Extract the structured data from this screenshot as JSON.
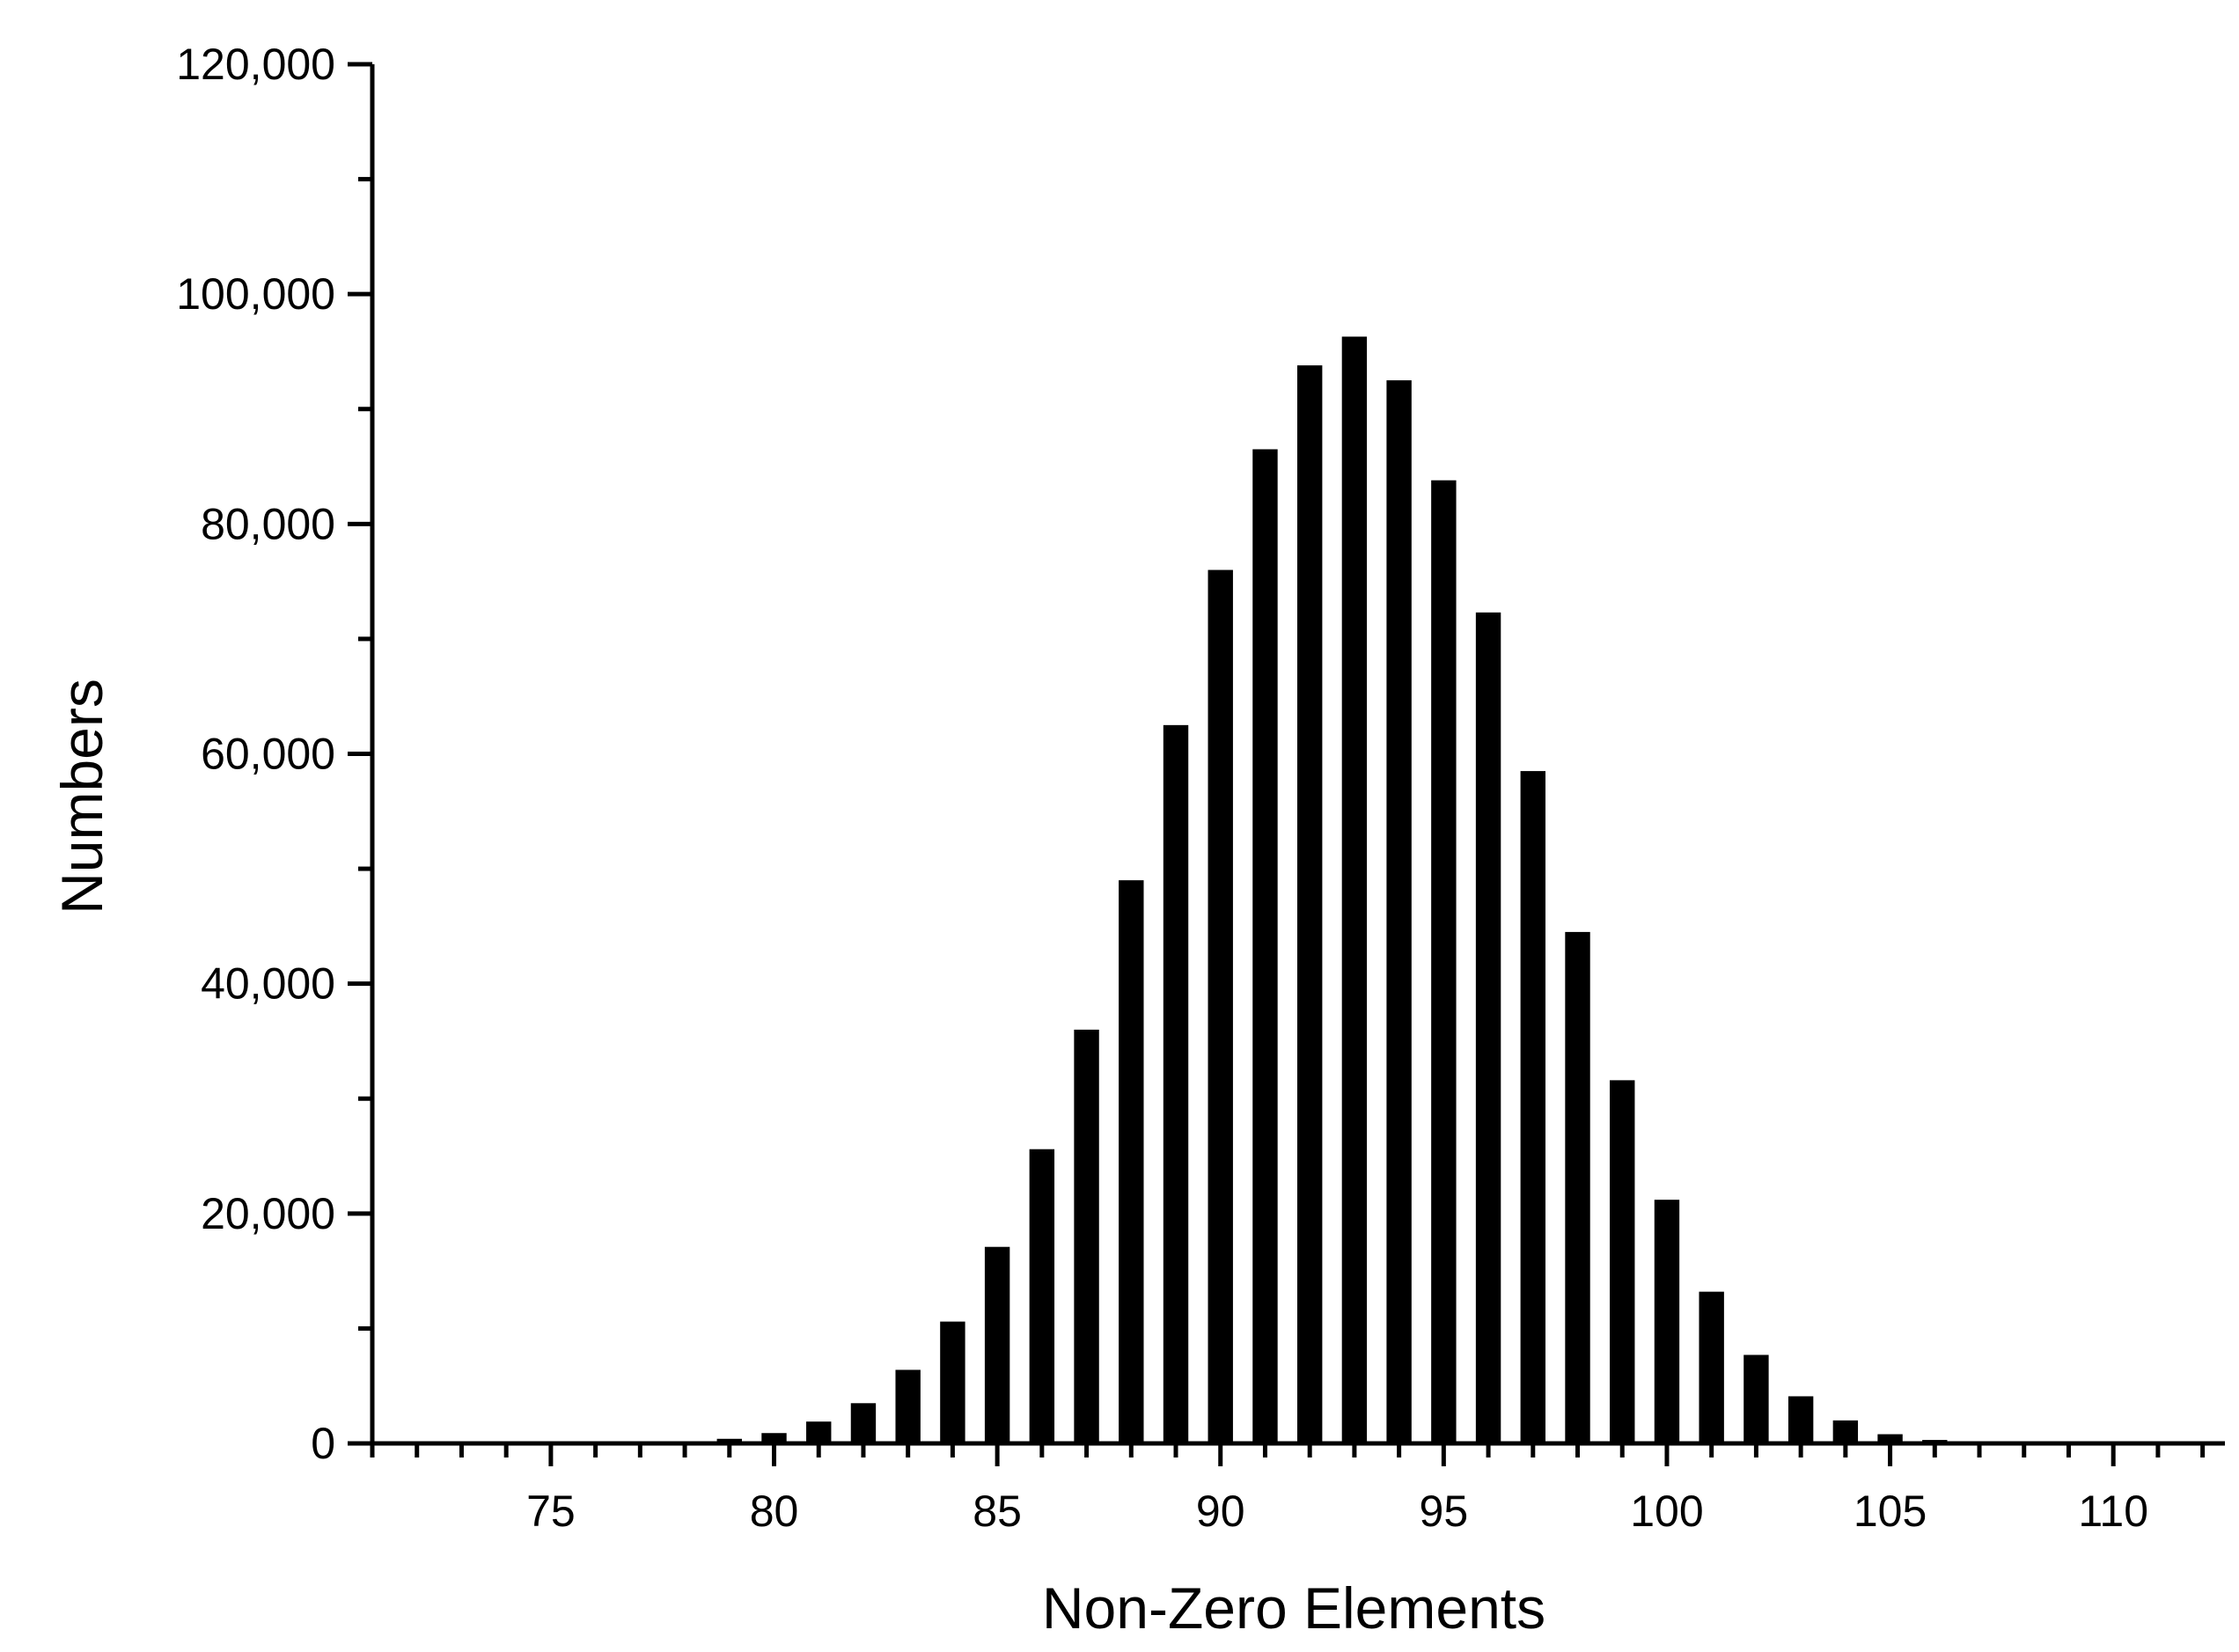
{
  "chart_data": {
    "type": "bar",
    "title": "",
    "xlabel": "Non-Zero Elements",
    "ylabel": "Numbers",
    "xlim": [
      71,
      112.5
    ],
    "ylim": [
      0,
      120000
    ],
    "x_major_ticks": [
      75,
      80,
      85,
      90,
      95,
      100,
      105,
      110
    ],
    "x_tick_labels": [
      "75",
      "80",
      "85",
      "90",
      "95",
      "100",
      "105",
      "110"
    ],
    "y_major_ticks": [
      0,
      20000,
      40000,
      60000,
      80000,
      100000,
      120000
    ],
    "y_tick_labels": [
      "0",
      "20,000",
      "40,000",
      "60,000",
      "80,000",
      "100,000",
      "120,000"
    ],
    "grid": false,
    "legend": "none",
    "bar_color": "#000000",
    "x": [
      72,
      73,
      74,
      75,
      76,
      77,
      78,
      79,
      80,
      81,
      82,
      83,
      84,
      85,
      86,
      87,
      88,
      89,
      90,
      91,
      92,
      93,
      94,
      95,
      96,
      97,
      98,
      99,
      100,
      101,
      102,
      103,
      104,
      105,
      106,
      107,
      108,
      109,
      110,
      111
    ],
    "values": [
      0,
      0,
      0,
      0,
      0,
      0,
      100,
      400,
      900,
      1900,
      3500,
      6400,
      10600,
      17100,
      25600,
      36000,
      49000,
      62500,
      76000,
      86500,
      93800,
      96300,
      92500,
      83800,
      72300,
      58500,
      44500,
      31600,
      21200,
      13200,
      7700,
      4100,
      2000,
      800,
      300,
      100,
      0,
      0,
      0,
      0
    ]
  }
}
